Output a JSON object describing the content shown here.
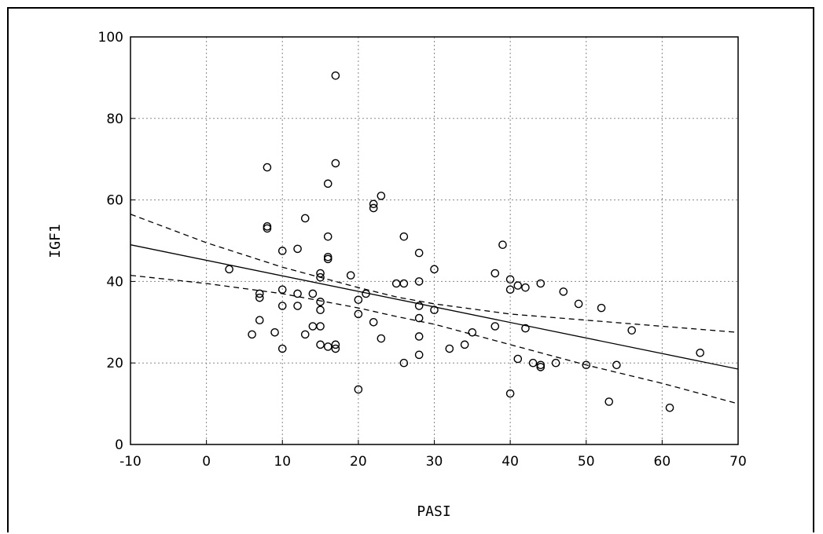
{
  "chart_data": {
    "type": "scatter",
    "xlabel": "PASI",
    "ylabel": "IGF1",
    "xlim": [
      -10,
      70
    ],
    "ylim": [
      0,
      100
    ],
    "xticks": [
      -10,
      0,
      10,
      20,
      30,
      40,
      50,
      60,
      70
    ],
    "yticks": [
      0,
      20,
      40,
      60,
      80,
      100
    ],
    "grid": true,
    "points": [
      [
        3,
        43
      ],
      [
        6,
        27
      ],
      [
        7,
        36
      ],
      [
        7,
        37
      ],
      [
        7,
        30.5
      ],
      [
        8,
        68
      ],
      [
        8,
        53.5
      ],
      [
        8,
        53
      ],
      [
        9,
        27.5
      ],
      [
        10,
        47.5
      ],
      [
        10,
        38
      ],
      [
        10,
        34
      ],
      [
        10,
        23.5
      ],
      [
        12,
        48
      ],
      [
        12,
        37
      ],
      [
        12,
        34
      ],
      [
        13,
        55.5
      ],
      [
        13,
        27
      ],
      [
        14,
        37
      ],
      [
        14,
        29
      ],
      [
        15,
        42
      ],
      [
        15,
        41
      ],
      [
        15,
        35
      ],
      [
        15,
        33
      ],
      [
        15,
        29
      ],
      [
        15,
        24.5
      ],
      [
        16,
        64
      ],
      [
        16,
        51
      ],
      [
        16,
        46
      ],
      [
        16,
        45.5
      ],
      [
        16,
        24
      ],
      [
        17,
        90.5
      ],
      [
        17,
        69
      ],
      [
        17,
        24.5
      ],
      [
        17,
        23.5
      ],
      [
        19,
        41.5
      ],
      [
        20,
        35.5
      ],
      [
        20,
        32
      ],
      [
        20,
        13.5
      ],
      [
        21,
        37
      ],
      [
        22,
        59
      ],
      [
        22,
        58
      ],
      [
        22,
        30
      ],
      [
        23,
        61
      ],
      [
        23,
        26
      ],
      [
        25,
        39.5
      ],
      [
        26,
        51
      ],
      [
        26,
        39.5
      ],
      [
        26,
        20
      ],
      [
        28,
        47
      ],
      [
        28,
        40
      ],
      [
        28,
        34
      ],
      [
        28,
        31
      ],
      [
        28,
        26.5
      ],
      [
        28,
        22
      ],
      [
        30,
        43
      ],
      [
        30,
        33
      ],
      [
        32,
        23.5
      ],
      [
        34,
        24.5
      ],
      [
        35,
        27.5
      ],
      [
        38,
        42
      ],
      [
        38,
        29
      ],
      [
        39,
        49
      ],
      [
        40,
        40.5
      ],
      [
        40,
        38
      ],
      [
        40,
        12.5
      ],
      [
        41,
        39
      ],
      [
        41,
        21
      ],
      [
        42,
        38.5
      ],
      [
        42,
        28.5
      ],
      [
        43,
        20
      ],
      [
        44,
        39.5
      ],
      [
        44,
        19.5
      ],
      [
        44,
        19
      ],
      [
        46,
        20
      ],
      [
        47,
        37.5
      ],
      [
        49,
        34.5
      ],
      [
        50,
        19.5
      ],
      [
        52,
        33.5
      ],
      [
        53,
        10.5
      ],
      [
        54,
        19.5
      ],
      [
        56,
        28
      ],
      [
        61,
        9
      ],
      [
        65,
        22.5
      ]
    ],
    "fit_line": {
      "x": [
        -10,
        70
      ],
      "y": [
        49,
        18.5
      ]
    },
    "ci_upper": {
      "x": [
        -10,
        0,
        10,
        20,
        25,
        30,
        40,
        50,
        60,
        70
      ],
      "y": [
        56.5,
        49.5,
        43.5,
        38.5,
        36.2,
        34.5,
        32,
        30.5,
        29,
        27.5
      ]
    },
    "ci_lower": {
      "x": [
        -10,
        0,
        10,
        20,
        25,
        30,
        40,
        50,
        60,
        70
      ],
      "y": [
        41.5,
        39.5,
        37,
        33.5,
        31.4,
        29.5,
        24.5,
        19.5,
        15,
        10
      ]
    }
  }
}
